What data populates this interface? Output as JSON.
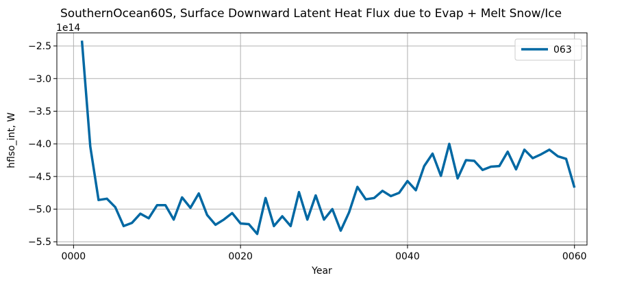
{
  "chart_data": {
    "type": "line",
    "title": "SouthernOcean60S, Surface Downward Latent Heat Flux due to Evap + Melt Snow/Ice",
    "xlabel": "Year",
    "ylabel": "hflso_int, W",
    "y_offset_label": "1e14",
    "xlim": [
      -2,
      61.5
    ],
    "ylim": [
      -5.55,
      -2.3
    ],
    "x_ticks": [
      0,
      20,
      40,
      60
    ],
    "x_tick_labels": [
      "0000",
      "0020",
      "0040",
      "0060"
    ],
    "y_ticks": [
      -5.5,
      -5.0,
      -4.5,
      -4.0,
      -3.5,
      -3.0,
      -2.5
    ],
    "y_tick_labels": [
      "−5.5",
      "−5.0",
      "−4.5",
      "−4.0",
      "−3.5",
      "−3.0",
      "−2.5"
    ],
    "grid": true,
    "legend_position": "top-right",
    "line_color": "#0068A3",
    "series": [
      {
        "name": "063",
        "x": [
          1,
          2,
          3,
          4,
          5,
          6,
          7,
          8,
          9,
          10,
          11,
          12,
          13,
          14,
          15,
          16,
          17,
          18,
          19,
          20,
          21,
          22,
          23,
          24,
          25,
          26,
          27,
          28,
          29,
          30,
          31,
          32,
          33,
          34,
          35,
          36,
          37,
          38,
          39,
          40,
          41,
          42,
          43,
          44,
          45,
          46,
          47,
          48,
          49,
          50,
          51,
          52,
          53,
          54,
          55,
          56,
          57,
          58,
          59,
          60
        ],
        "values": [
          -2.42,
          -4.04,
          -4.86,
          -4.84,
          -4.97,
          -5.26,
          -5.21,
          -5.07,
          -5.14,
          -4.94,
          -4.94,
          -5.16,
          -4.82,
          -4.98,
          -4.76,
          -5.09,
          -5.24,
          -5.16,
          -5.06,
          -5.22,
          -5.23,
          -5.38,
          -4.83,
          -5.26,
          -5.11,
          -5.26,
          -4.74,
          -5.16,
          -4.79,
          -5.16,
          -5.0,
          -5.33,
          -5.05,
          -4.66,
          -4.85,
          -4.83,
          -4.72,
          -4.8,
          -4.75,
          -4.57,
          -4.71,
          -4.34,
          -4.15,
          -4.49,
          -4.0,
          -4.53,
          -4.25,
          -4.26,
          -4.4,
          -4.35,
          -4.34,
          -4.12,
          -4.39,
          -4.09,
          -4.22,
          -4.16,
          -4.09,
          -4.19,
          -4.23,
          -4.67
        ]
      }
    ]
  }
}
